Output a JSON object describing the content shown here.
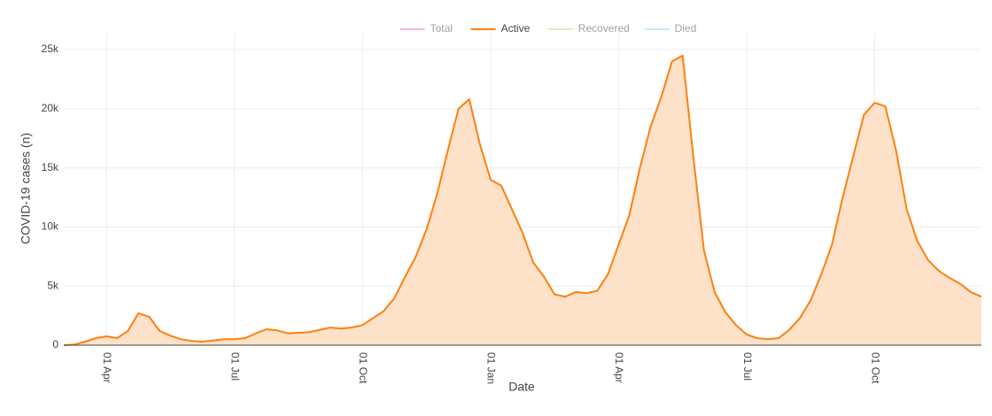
{
  "chart_data": {
    "type": "area",
    "xlabel": "Date",
    "ylabel": "COVID-19 cases (n)",
    "categories": [
      null,
      null,
      null,
      null,
      "01 Apr",
      null,
      null,
      null,
      null,
      null,
      null,
      null,
      null,
      null,
      null,
      null,
      "01 Jul",
      null,
      null,
      null,
      null,
      null,
      null,
      null,
      null,
      null,
      null,
      null,
      "01 Oct",
      null,
      null,
      null,
      null,
      null,
      null,
      null,
      null,
      null,
      null,
      null,
      "01 Jan",
      null,
      null,
      null,
      null,
      null,
      null,
      null,
      null,
      null,
      null,
      null,
      "01 Apr",
      null,
      null,
      null,
      null,
      null,
      null,
      null,
      null,
      null,
      null,
      null,
      "01 Jul",
      null,
      null,
      null,
      null,
      null,
      null,
      null,
      null,
      null,
      null,
      null,
      "01 Oct",
      null,
      null,
      null,
      null,
      null,
      null,
      null,
      null,
      null,
      null
    ],
    "series": [
      {
        "name": "Total",
        "color": "#e377c2",
        "visible": false
      },
      {
        "name": "Active",
        "color": "#ff7f0e",
        "fill": "#fde2c9",
        "visible": true,
        "values": [
          0,
          50,
          300,
          600,
          750,
          600,
          1200,
          2700,
          2400,
          1200,
          800,
          500,
          350,
          300,
          400,
          500,
          500,
          600,
          1000,
          1350,
          1250,
          1000,
          1050,
          1100,
          1300,
          1500,
          1400,
          1500,
          1700,
          2300,
          2900,
          4000,
          5800,
          7500,
          9800,
          12800,
          16500,
          20000,
          20800,
          17000,
          14000,
          13500,
          11500,
          9500,
          7000,
          5800,
          4300,
          4100,
          4500,
          4400,
          4600,
          6000,
          8500,
          11000,
          15000,
          18500,
          21000,
          24000,
          24500,
          16000,
          8000,
          4500,
          2800,
          1700,
          900,
          600,
          500,
          600,
          1300,
          2300,
          3800,
          6000,
          8500,
          12500,
          16000,
          19500,
          20500,
          20200,
          16500,
          11500,
          8800,
          7200,
          6300,
          5700,
          5200,
          4500,
          4100
        ]
      },
      {
        "name": "Recovered",
        "color": "#bcde85",
        "visible": false
      },
      {
        "name": "Died",
        "color": "#8fd9e6",
        "visible": false
      }
    ],
    "ylim": [
      0,
      26350
    ],
    "yticks": [
      0,
      {
        "value": 5000,
        "label": "5k"
      },
      {
        "value": 10000,
        "label": "10k"
      },
      {
        "value": 15000,
        "label": "15k"
      },
      {
        "value": 20000,
        "label": "20k"
      },
      {
        "value": 25000,
        "label": "25k"
      }
    ],
    "grid": true,
    "legend": "top"
  }
}
